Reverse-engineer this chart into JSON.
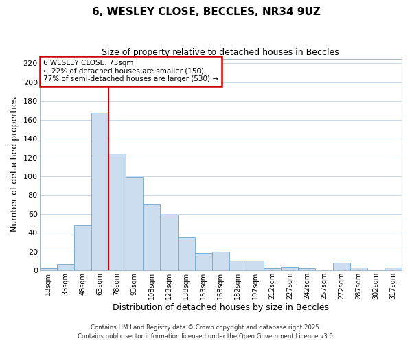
{
  "title": "6, WESLEY CLOSE, BECCLES, NR34 9UZ",
  "subtitle": "Size of property relative to detached houses in Beccles",
  "xlabel": "Distribution of detached houses by size in Beccles",
  "ylabel": "Number of detached properties",
  "bar_labels": [
    "18sqm",
    "33sqm",
    "48sqm",
    "63sqm",
    "78sqm",
    "93sqm",
    "108sqm",
    "123sqm",
    "138sqm",
    "153sqm",
    "168sqm",
    "182sqm",
    "197sqm",
    "212sqm",
    "227sqm",
    "242sqm",
    "257sqm",
    "272sqm",
    "287sqm",
    "302sqm",
    "317sqm"
  ],
  "bar_values": [
    2,
    7,
    48,
    168,
    124,
    99,
    70,
    59,
    35,
    18,
    20,
    10,
    10,
    2,
    4,
    2,
    0,
    8,
    3,
    0,
    3
  ],
  "bar_color": "#ccddf0",
  "bar_edge_color": "#7bafd4",
  "grid_color": "#c8d8ec",
  "vline_x_index": 3,
  "vline_color": "#cc0000",
  "annotation_title": "6 WESLEY CLOSE: 73sqm",
  "annotation_line1": "← 22% of detached houses are smaller (150)",
  "annotation_line2": "77% of semi-detached houses are larger (530) →",
  "annotation_box_color": "#ffffff",
  "annotation_box_edge": "#cc0000",
  "ylim": [
    0,
    225
  ],
  "yticks": [
    0,
    20,
    40,
    60,
    80,
    100,
    120,
    140,
    160,
    180,
    200,
    220
  ],
  "footer1": "Contains HM Land Registry data © Crown copyright and database right 2025.",
  "footer2": "Contains public sector information licensed under the Open Government Licence v3.0.",
  "bg_color": "#ffffff",
  "plot_bg_color": "#ffffff"
}
